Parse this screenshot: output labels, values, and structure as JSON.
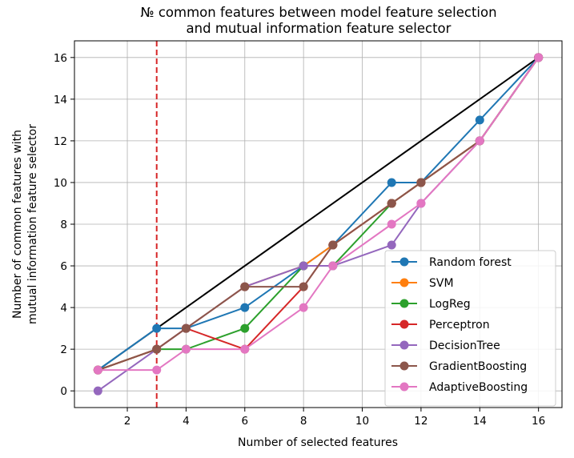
{
  "chart_data": {
    "type": "line",
    "title_line1": "№ common features between model feature selection",
    "title_line2": "and mutual information feature selector",
    "xlabel": "Number of selected features",
    "ylabel_line1": "Number of common features with",
    "ylabel_line2": "mutual information feature selector",
    "xlim": [
      0.2,
      16.8
    ],
    "ylim": [
      -0.8,
      16.8
    ],
    "x_ticks": [
      2,
      4,
      6,
      8,
      10,
      12,
      14,
      16
    ],
    "y_ticks": [
      0,
      2,
      4,
      6,
      8,
      10,
      12,
      14,
      16
    ],
    "grid": true,
    "legend_position": "lower-right",
    "x": [
      1,
      3,
      4,
      6,
      8,
      9,
      11,
      12,
      14,
      16
    ],
    "reference_line": {
      "x": [
        1,
        16
      ],
      "y": [
        1,
        16
      ],
      "color": "#000000"
    },
    "vertical_line": {
      "x": 3,
      "color": "#d62728",
      "style": "dashed"
    },
    "series": [
      {
        "name": "Random forest",
        "color": "#1f77b4",
        "values": [
          1,
          3,
          3,
          4,
          6,
          7,
          10,
          10,
          13,
          16
        ]
      },
      {
        "name": "SVM",
        "color": "#ff7f0e",
        "values": [
          1,
          2,
          3,
          5,
          6,
          7,
          9,
          10,
          12,
          16
        ]
      },
      {
        "name": "LogReg",
        "color": "#2ca02c",
        "values": [
          1,
          2,
          2,
          3,
          6,
          6,
          9,
          10,
          12,
          16
        ]
      },
      {
        "name": "Perceptron",
        "color": "#d62728",
        "values": [
          1,
          2,
          3,
          2,
          5,
          7,
          9,
          10,
          12,
          16
        ]
      },
      {
        "name": "DecisionTree",
        "color": "#9467bd",
        "values": [
          0,
          2,
          3,
          5,
          6,
          6,
          7,
          9,
          12,
          16
        ]
      },
      {
        "name": "GradientBoosting",
        "color": "#8c564b",
        "values": [
          1,
          2,
          3,
          5,
          5,
          7,
          9,
          10,
          12,
          16
        ]
      },
      {
        "name": "AdaptiveBoosting",
        "color": "#e377c2",
        "values": [
          1,
          1,
          2,
          2,
          4,
          6,
          8,
          9,
          12,
          16
        ]
      }
    ]
  }
}
